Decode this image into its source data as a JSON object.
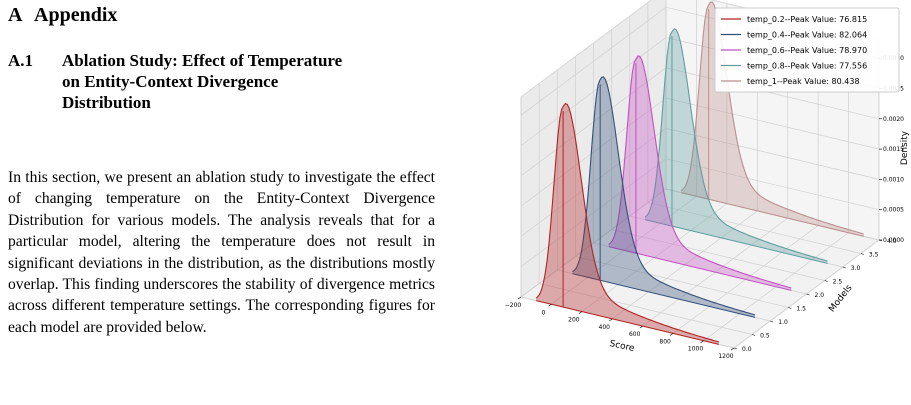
{
  "section": {
    "number": "A",
    "title": "Appendix"
  },
  "subsection": {
    "number": "A.1",
    "title": "Ablation Study: Effect of Temperature on Entity-Context Divergence Distribution"
  },
  "paragraph": "In this section, we present an ablation study to investigate the effect of changing temperature on the Entity-Context Divergence Distribution for various models. The analysis reveals that for a particular model, altering the temperature does not result in significant deviations in the distribution, as the distributions mostly overlap. This finding underscores the stability of divergence metrics across different temperature settings. The corresponding figures for each model are provided below.",
  "chart_data": {
    "type": "area",
    "projection": "3d",
    "title": "",
    "xlabel": "Score",
    "ylabel": "Models",
    "zlabel": "Density",
    "x_ticks": [
      "−200",
      "0",
      "200",
      "400",
      "600",
      "800",
      "1000",
      "1200"
    ],
    "y_ticks": [
      "0.0",
      "0.5",
      "1.0",
      "1.5",
      "2.0",
      "2.5",
      "3.0",
      "3.5",
      "4.0"
    ],
    "z_ticks": [
      "0.0000",
      "0.0005",
      "0.0010",
      "0.0015",
      "0.0020",
      "0.0025",
      "0.0030"
    ],
    "xlim": [
      -200,
      1200
    ],
    "ylim": [
      0,
      4
    ],
    "zlim": [
      0,
      0.0033
    ],
    "grid": true,
    "legend_position": "top-right",
    "series": [
      {
        "name": "temp_0.2--Peak Value: 76.815",
        "model": 0,
        "peak_score": 76.815,
        "peak_density": 0.0033,
        "color": "#b22222"
      },
      {
        "name": "temp_0.4--Peak Value: 82.064",
        "model": 1,
        "peak_score": 82.064,
        "peak_density": 0.0033,
        "color": "#34507a"
      },
      {
        "name": "temp_0.6--Peak Value: 78.970",
        "model": 2,
        "peak_score": 78.97,
        "peak_density": 0.0032,
        "color": "#c251c2"
      },
      {
        "name": "temp_0.8--Peak Value: 77.556",
        "model": 3,
        "peak_score": 77.556,
        "peak_density": 0.0032,
        "color": "#5f9ea0"
      },
      {
        "name": "temp_1--Peak Value: 80.438",
        "model": 4,
        "peak_score": 80.438,
        "peak_density": 0.0032,
        "color": "#bc8f8f"
      }
    ]
  }
}
